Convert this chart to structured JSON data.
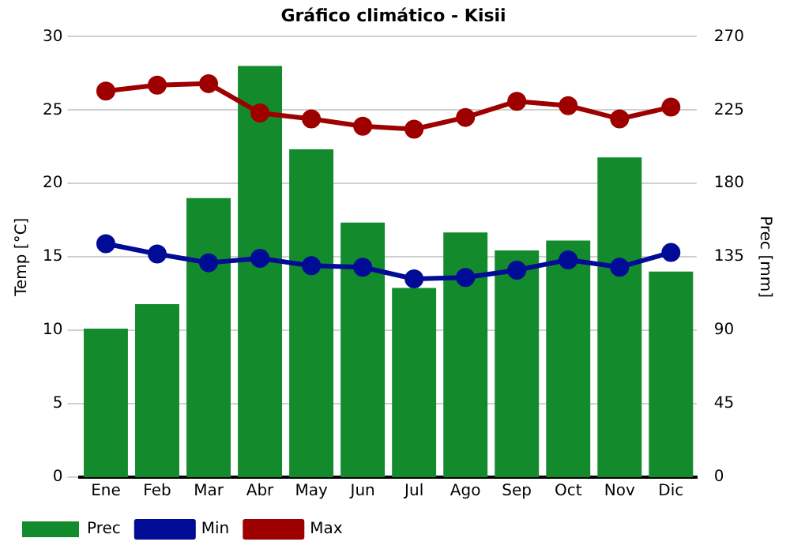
{
  "chart_data": {
    "type": "bar",
    "title": "Gráfico climático - Kisii",
    "ylabel": "Temp [°C]",
    "y2label": "Prec [mm]",
    "categories": [
      "Ene",
      "Feb",
      "Mar",
      "Abr",
      "May",
      "Jun",
      "Jul",
      "Ago",
      "Sep",
      "Oct",
      "Nov",
      "Dic"
    ],
    "series": [
      {
        "name": "Prec",
        "axis": "y2",
        "color": "#138a2c",
        "values": [
          91,
          106,
          171,
          252,
          201,
          156,
          116,
          150,
          139,
          145,
          196,
          126
        ]
      },
      {
        "name": "Min",
        "type": "line",
        "color": "#000b96",
        "values": [
          15.9,
          15.2,
          14.6,
          14.9,
          14.4,
          14.3,
          13.5,
          13.6,
          14.1,
          14.8,
          14.3,
          15.3
        ]
      },
      {
        "name": "Max",
        "type": "line",
        "color": "#9e0000",
        "values": [
          26.3,
          26.7,
          26.8,
          24.8,
          24.4,
          23.9,
          23.7,
          24.5,
          25.6,
          25.3,
          24.4,
          25.2
        ]
      }
    ],
    "ylim": [
      0,
      30
    ],
    "yticks": [
      0,
      5,
      10,
      15,
      20,
      25,
      30
    ],
    "y2lim": [
      0,
      270
    ],
    "y2ticks": [
      0,
      45,
      90,
      135,
      180,
      225,
      270
    ],
    "grid": "y",
    "legend": "bottom",
    "marker": "circle",
    "line_style": "solid"
  }
}
